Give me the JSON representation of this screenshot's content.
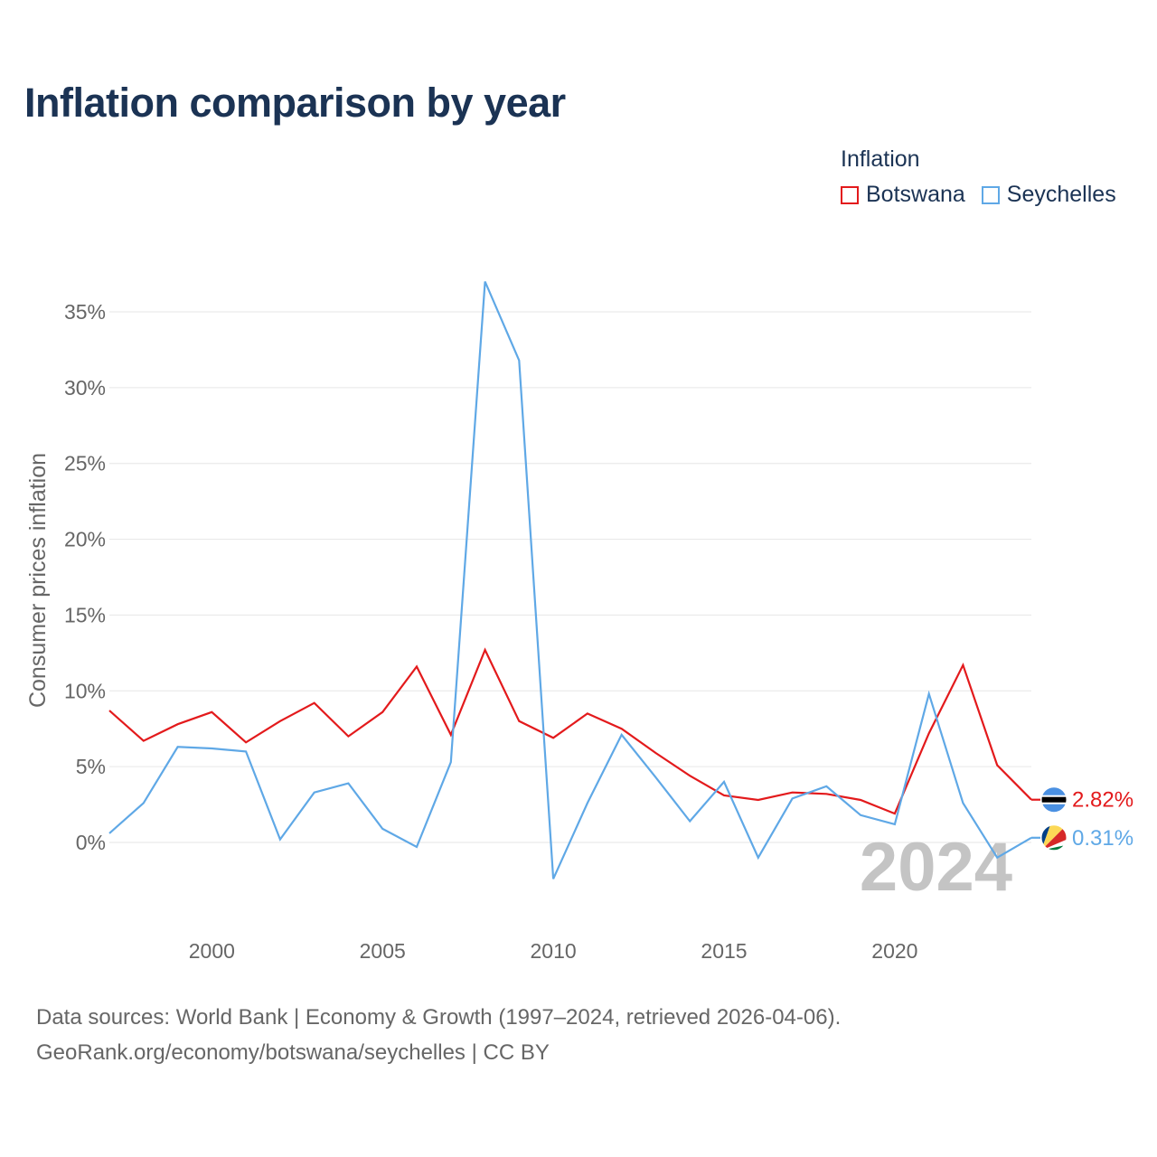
{
  "title": "Inflation comparison by year",
  "legend": {
    "title": "Inflation",
    "items": [
      {
        "label": "Botswana",
        "color": "#e31a1c"
      },
      {
        "label": "Seychelles",
        "color": "#5fa8e6"
      }
    ]
  },
  "footer": {
    "line1": "Data sources: World Bank | Economy & Growth (1997–2024, retrieved 2026-04-06).",
    "line2": "GeoRank.org/economy/botswana/seychelles | CC BY"
  },
  "chart_data": {
    "type": "line",
    "title": "Inflation comparison by year",
    "xlabel": "",
    "ylabel": "Consumer prices inflation",
    "xlim": [
      1997,
      2024
    ],
    "ylim": [
      -5,
      38
    ],
    "x_ticks": [
      2000,
      2005,
      2010,
      2015,
      2020
    ],
    "y_ticks": [
      {
        "value": 0,
        "label": "0%"
      },
      {
        "value": 5,
        "label": "5%"
      },
      {
        "value": 10,
        "label": "10%"
      },
      {
        "value": 15,
        "label": "15%"
      },
      {
        "value": 20,
        "label": "20%"
      },
      {
        "value": 25,
        "label": "25%"
      },
      {
        "value": 30,
        "label": "30%"
      },
      {
        "value": 35,
        "label": "35%"
      }
    ],
    "year_watermark": "2024",
    "x": [
      1997,
      1998,
      1999,
      2000,
      2001,
      2002,
      2003,
      2004,
      2005,
      2006,
      2007,
      2008,
      2009,
      2010,
      2011,
      2012,
      2013,
      2014,
      2015,
      2016,
      2017,
      2018,
      2019,
      2020,
      2021,
      2022,
      2023,
      2024
    ],
    "series": [
      {
        "name": "Botswana",
        "color": "#e31a1c",
        "end_label": "2.82%",
        "values": [
          8.7,
          6.7,
          7.8,
          8.6,
          6.6,
          8.0,
          9.2,
          7.0,
          8.6,
          11.6,
          7.1,
          12.7,
          8.0,
          6.9,
          8.5,
          7.5,
          5.9,
          4.4,
          3.1,
          2.8,
          3.3,
          3.2,
          2.8,
          1.9,
          7.2,
          11.7,
          5.1,
          2.82
        ]
      },
      {
        "name": "Seychelles",
        "color": "#5fa8e6",
        "end_label": "0.31%",
        "values": [
          0.6,
          2.6,
          6.3,
          6.2,
          6.0,
          0.2,
          3.3,
          3.9,
          0.9,
          -0.3,
          5.3,
          37.0,
          31.8,
          -2.4,
          2.6,
          7.1,
          4.3,
          1.4,
          4.0,
          -1.0,
          2.9,
          3.7,
          1.8,
          1.2,
          9.8,
          2.6,
          -1.0,
          0.31
        ]
      }
    ]
  }
}
